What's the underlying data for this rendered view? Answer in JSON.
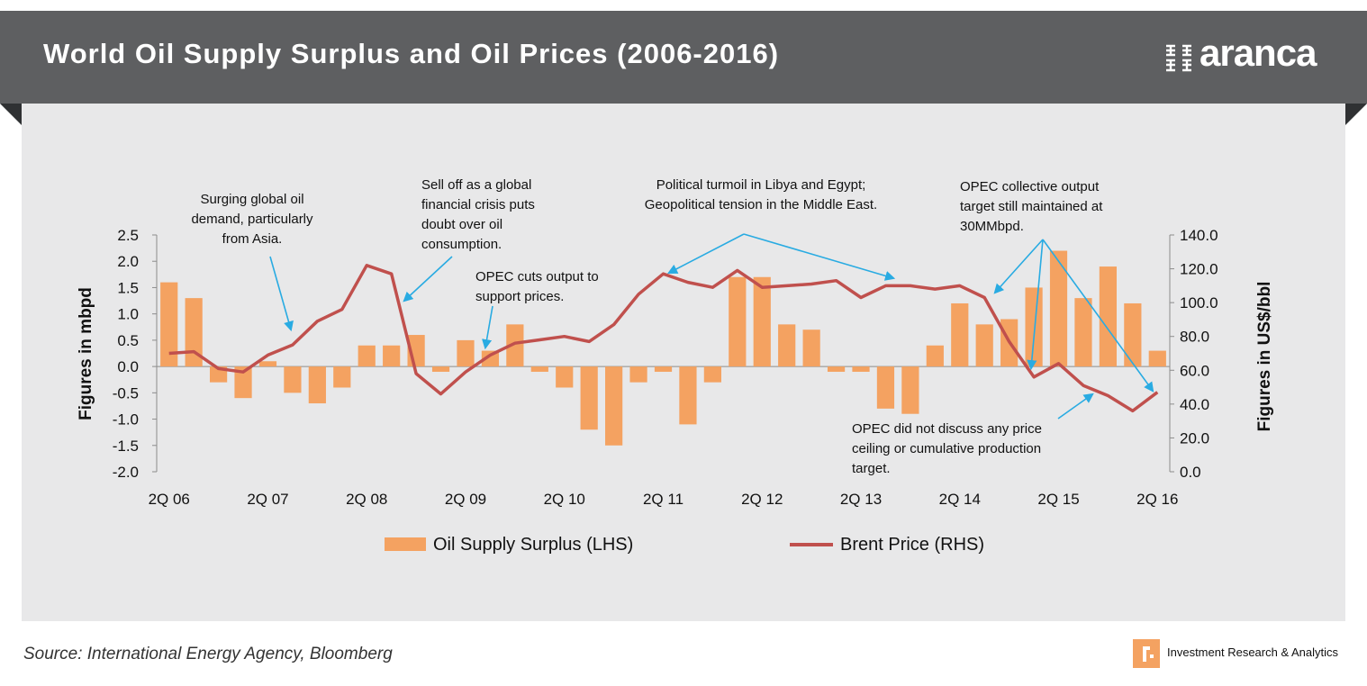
{
  "header": {
    "title": "World Oil Supply Surplus and Oil Prices (2006-2016)",
    "logo_text": "aranca",
    "background": "#5e5f61"
  },
  "footer": {
    "source": "Source: International Energy Agency, Bloomberg",
    "brand_text": "Investment Research & Analytics",
    "brand_icon": "aranca-mark-icon"
  },
  "chart_data": {
    "type": "bar+line",
    "title": "",
    "categories": [
      "2Q 06",
      "3Q 06",
      "4Q 06",
      "1Q 07",
      "2Q 07",
      "3Q 07",
      "4Q 07",
      "1Q 08",
      "2Q 08",
      "3Q 08",
      "4Q 08",
      "1Q 09",
      "2Q 09",
      "3Q 09",
      "4Q 09",
      "1Q 10",
      "2Q 10",
      "3Q 10",
      "4Q 10",
      "1Q 11",
      "2Q 11",
      "3Q 11",
      "4Q 11",
      "1Q 12",
      "2Q 12",
      "3Q 12",
      "4Q 12",
      "1Q 13",
      "2Q 13",
      "3Q 13",
      "4Q 13",
      "1Q 14",
      "2Q 14",
      "3Q 14",
      "4Q 14",
      "1Q 15",
      "2Q 15",
      "3Q 15",
      "4Q 15",
      "1Q 16",
      "2Q 16"
    ],
    "x_tick_labels": [
      "2Q 06",
      "2Q 07",
      "2Q 08",
      "2Q 09",
      "2Q 10",
      "2Q 11",
      "2Q 12",
      "2Q 13",
      "2Q 14",
      "2Q 15",
      "2Q 16"
    ],
    "series": [
      {
        "name": "Oil Supply Surplus (LHS)",
        "type": "bar",
        "axis": "left",
        "color": "#f4a261",
        "values": [
          1.6,
          1.3,
          -0.3,
          -0.6,
          0.1,
          -0.5,
          -0.7,
          -0.4,
          0.4,
          0.4,
          0.6,
          -0.1,
          0.5,
          0.3,
          0.8,
          -0.1,
          -0.4,
          -1.2,
          -1.5,
          -0.3,
          -0.1,
          -1.1,
          -0.3,
          1.7,
          1.7,
          0.8,
          0.7,
          -0.1,
          -0.1,
          -0.8,
          -0.9,
          0.4,
          1.2,
          0.8,
          0.9,
          1.5,
          2.2,
          1.3,
          1.9,
          1.2,
          0.3
        ]
      },
      {
        "name": "Brent Price (RHS)",
        "type": "line",
        "axis": "right",
        "color": "#c0504d",
        "values": [
          70,
          71,
          61,
          59,
          69,
          75,
          89,
          96,
          122,
          117,
          58,
          46,
          59,
          69,
          76,
          78,
          80,
          77,
          87,
          105,
          117,
          112,
          109,
          119,
          109,
          110,
          111,
          113,
          103,
          110,
          110,
          108,
          110,
          103,
          77,
          56,
          64,
          51,
          45,
          36,
          47
        ]
      }
    ],
    "y_left": {
      "label": "Figures in mbpd",
      "ylim": [
        -2.0,
        2.5
      ],
      "ticks": [
        "2.5",
        "2.0",
        "1.5",
        "1.0",
        "0.5",
        "0.0",
        "-0.5",
        "-1.0",
        "-1.5",
        "-2.0"
      ]
    },
    "y_right": {
      "label": "Figures in US$/bbl",
      "ylim": [
        0,
        140
      ],
      "ticks": [
        "140.0",
        "120.0",
        "100.0",
        "80.0",
        "60.0",
        "40.0",
        "20.0",
        "0.0"
      ]
    },
    "grid": false,
    "legend_position": "bottom",
    "annotations": [
      {
        "lines": [
          "Surging global oil",
          "demand, particularly",
          "from Asia."
        ]
      },
      {
        "lines": [
          "Sell off as a global",
          "financial crisis puts",
          "doubt over oil",
          "consumption."
        ]
      },
      {
        "lines": [
          "OPEC cuts output to",
          "support prices."
        ]
      },
      {
        "lines": [
          "Political turmoil in Libya and Egypt;",
          "Geopolitical tension in the Middle East."
        ]
      },
      {
        "lines": [
          "OPEC collective output",
          "target still maintained at",
          "30MMbpd."
        ]
      },
      {
        "lines": [
          "OPEC did not discuss any price",
          "ceiling or cumulative production",
          "target."
        ]
      }
    ],
    "arrow_color": "#29abe2"
  }
}
